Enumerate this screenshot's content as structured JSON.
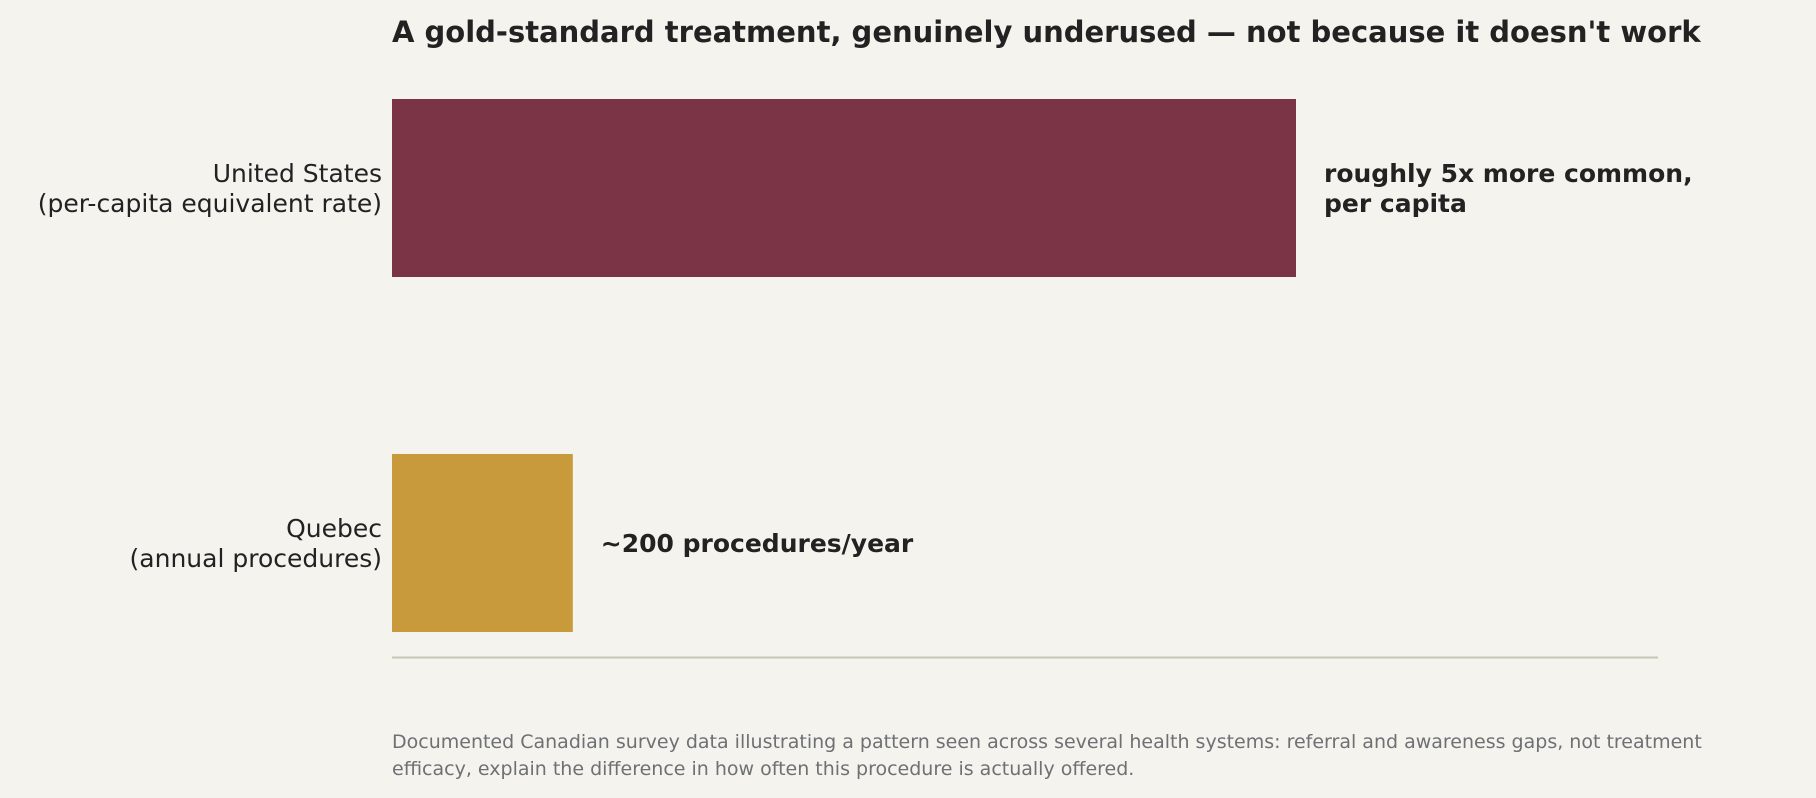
{
  "chart_data": {
    "type": "bar",
    "orientation": "horizontal",
    "title": "A gold-standard treatment, genuinely underused — not because it doesn't work",
    "categories": [
      [
        "United States",
        "(per-capita equivalent rate)"
      ],
      [
        "Quebec",
        "(annual procedures)"
      ]
    ],
    "values": [
      5,
      1
    ],
    "data_labels": [
      [
        "roughly 5x more common,",
        "per capita"
      ],
      [
        "~200 procedures/year"
      ]
    ],
    "colors": [
      "#7b3446",
      "#c99a3b"
    ],
    "xlabel": "",
    "ylabel": "",
    "xlim": [
      0,
      7
    ],
    "grid": false,
    "legend": "none"
  },
  "footnote": [
    "Documented Canadian survey data illustrating a pattern seen across several health systems: referral and awareness gaps, not treatment",
    "efficacy, explain the difference in how often this procedure is actually offered."
  ],
  "colors": {
    "background": "#f4f3ee",
    "text": "#222222",
    "footnote": "#6e7073",
    "axis_line": "#c5c7b4"
  }
}
